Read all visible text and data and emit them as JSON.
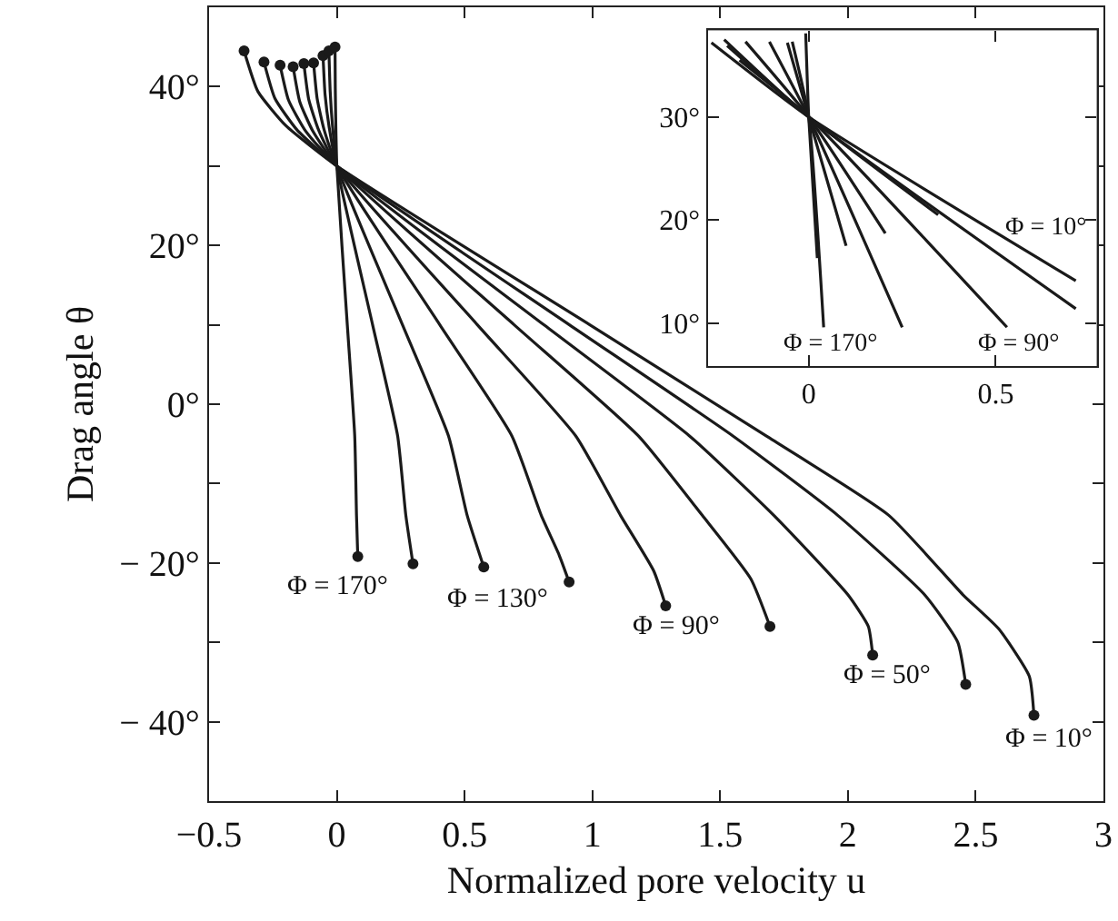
{
  "chart_data": [
    {
      "type": "line",
      "xlabel": "Normalized pore velocity u",
      "ylabel": "Drag angle θ",
      "xlim": [
        -0.5,
        3
      ],
      "ylim": [
        -50,
        50
      ],
      "xticks": [
        {
          "value": -0.5,
          "label": "−0.5"
        },
        0,
        0.5,
        1,
        1.5,
        2,
        2.5,
        3
      ],
      "yticks": [
        {
          "value": -40,
          "label": "− 40°"
        },
        {
          "value": -30,
          "label": null
        },
        {
          "value": -20,
          "label": "− 20°"
        },
        {
          "value": -10,
          "label": null
        },
        {
          "value": 0,
          "label": "0°"
        },
        {
          "value": 10,
          "label": null
        },
        {
          "value": 20,
          "label": "20°"
        },
        {
          "value": 30,
          "label": null
        },
        {
          "value": 40,
          "label": "40°"
        }
      ],
      "series": [
        {
          "color": "#1a1a1a",
          "x": [
            -0.363,
            -0.309,
            -0.2,
            0,
            0.99,
            1.68,
            2.16,
            2.45,
            2.59,
            2.71,
            2.728
          ],
          "values": [
            44.5,
            39.4,
            35.1,
            30,
            10,
            -4,
            -14,
            -24,
            -28.3,
            -34.3,
            -39.2
          ]
        },
        {
          "color": "#1a1a1a",
          "x": [
            -0.285,
            -0.242,
            -0.157,
            0,
            0.91,
            1.55,
            1.96,
            2.3,
            2.43,
            2.461
          ],
          "values": [
            43.1,
            38.5,
            34.6,
            30,
            10,
            -4,
            -14,
            -24,
            -30,
            -35.3
          ]
        },
        {
          "color": "#1a1a1a",
          "x": [
            -0.222,
            -0.189,
            -0.122,
            0,
            0.81,
            1.38,
            1.71,
            2.0,
            2.08,
            2.097
          ],
          "values": [
            42.7,
            38.3,
            34.4,
            30,
            10,
            -4,
            -14,
            -24,
            -28,
            -31.6
          ]
        },
        {
          "color": "#1a1a1a",
          "x": [
            -0.171,
            -0.145,
            -0.094,
            0,
            0.694,
            1.18,
            1.43,
            1.62,
            1.695
          ],
          "values": [
            42.5,
            38.1,
            34.4,
            30,
            10,
            -4,
            -14,
            -22,
            -28.0
          ]
        },
        {
          "color": "#1a1a1a",
          "x": [
            -0.129,
            -0.11,
            -0.071,
            0,
            0.55,
            0.935,
            1.11,
            1.24,
            1.287
          ],
          "values": [
            42.9,
            38.4,
            34.5,
            30,
            10,
            -4,
            -14,
            -21,
            -25.4
          ]
        },
        {
          "color": "#1a1a1a",
          "x": [
            -0.091,
            -0.077,
            -0.05,
            0,
            0.403,
            0.685,
            0.8,
            0.87,
            0.909
          ],
          "values": [
            43.0,
            38.5,
            34.6,
            30,
            10,
            -4,
            -14,
            -19,
            -22.4
          ]
        },
        {
          "color": "#1a1a1a",
          "x": [
            -0.054,
            -0.046,
            -0.03,
            0,
            0.257,
            0.437,
            0.51,
            0.575
          ],
          "values": [
            43.9,
            39.0,
            34.9,
            30,
            10,
            -4,
            -14,
            -20.5
          ]
        },
        {
          "color": "#1a1a1a",
          "x": [
            -0.031,
            -0.026,
            -0.017,
            0,
            0.14,
            0.238,
            0.27,
            0.298
          ],
          "values": [
            44.5,
            39.4,
            35.1,
            30,
            10,
            -4,
            -14,
            -20.1
          ]
        },
        {
          "color": "#1a1a1a",
          "x": [
            -0.007,
            -0.006,
            -0.004,
            0,
            0.041,
            0.07,
            0.077,
            0.082
          ],
          "values": [
            45.0,
            39.8,
            35.3,
            30,
            10,
            -4,
            -14,
            -19.2
          ]
        },
        {
          "type": "scatter",
          "marker": "circle",
          "color": "#1a1a1a",
          "x": [
            -0.363,
            -0.285,
            -0.222,
            -0.171,
            -0.129,
            -0.091,
            -0.054,
            -0.031,
            -0.007,
            2.728,
            2.461,
            2.097,
            1.695,
            1.287,
            0.909,
            0.575,
            0.298,
            0.082
          ],
          "values": [
            44.5,
            43.1,
            42.7,
            42.5,
            42.9,
            43.0,
            43.9,
            44.5,
            45.0,
            -39.2,
            -35.3,
            -31.6,
            -28.0,
            -25.4,
            -22.4,
            -20.5,
            -20.1,
            -19.2
          ]
        }
      ],
      "annotations": [
        "Φ = 170°",
        "Φ = 130°",
        "Φ = 90°",
        "Φ = 50°",
        "Φ = 10°"
      ]
    },
    {
      "type": "line",
      "xlim": [
        -0.27,
        0.77
      ],
      "ylim": [
        5.8,
        38.4
      ],
      "xticks": [
        0,
        0.5
      ],
      "yticks": [
        {
          "value": 10,
          "label": "10°"
        },
        {
          "value": 20,
          "label": "20°"
        },
        {
          "value": 30,
          "label": "30°"
        }
      ],
      "series": [
        {
          "color": "#1a1a1a",
          "x": [
            -0.26,
            0,
            0.714
          ],
          "values": [
            37.2,
            30,
            14.1
          ]
        },
        {
          "color": "#1a1a1a",
          "x": [
            -0.226,
            0,
            0.714
          ],
          "values": [
            37.5,
            30,
            11.4
          ]
        },
        {
          "color": "#1a1a1a",
          "x": [
            -0.218,
            0,
            0.346
          ],
          "values": [
            36.9,
            30,
            20.5
          ]
        },
        {
          "color": "#1a1a1a",
          "x": [
            -0.185,
            0,
            0.53
          ],
          "values": [
            35.5,
            30,
            9.6
          ]
        },
        {
          "color": "#1a1a1a",
          "x": [
            -0.169,
            0,
            0.205
          ],
          "values": [
            37.3,
            30,
            18.7
          ]
        },
        {
          "color": "#1a1a1a",
          "x": [
            -0.105,
            0,
            0.25
          ],
          "values": [
            37.3,
            30,
            9.6
          ]
        },
        {
          "color": "#1a1a1a",
          "x": [
            -0.057,
            0,
            0.1
          ],
          "values": [
            37.2,
            30,
            17.5
          ]
        },
        {
          "color": "#1a1a1a",
          "x": [
            -0.044,
            0,
            0.04
          ],
          "values": [
            37.3,
            30,
            9.6
          ]
        },
        {
          "color": "#1a1a1a",
          "x": [
            -0.008,
            0,
            0.023
          ],
          "values": [
            38.1,
            30,
            16.3
          ]
        }
      ],
      "annotations": [
        "Φ = 10°",
        "Φ = 170°",
        "Φ = 90°"
      ]
    }
  ]
}
